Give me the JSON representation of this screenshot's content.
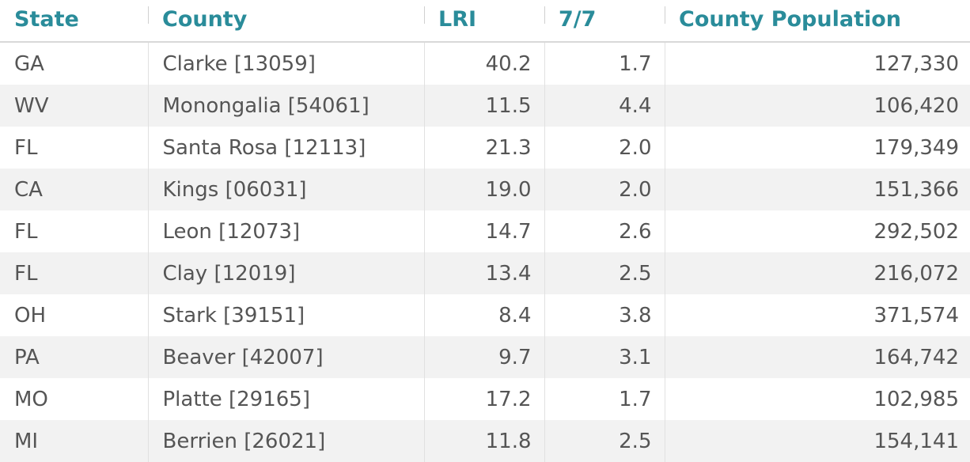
{
  "chart_data": {
    "type": "table",
    "columns": [
      "State",
      "County",
      "LRI",
      "7/7",
      "County Population"
    ],
    "rows": [
      {
        "state": "GA",
        "county": "Clarke [13059]",
        "lri": "40.2",
        "d77": "1.7",
        "pop": "127,330"
      },
      {
        "state": "WV",
        "county": "Monongalia [54061]",
        "lri": "11.5",
        "d77": "4.4",
        "pop": "106,420"
      },
      {
        "state": "FL",
        "county": "Santa Rosa [12113]",
        "lri": "21.3",
        "d77": "2.0",
        "pop": "179,349"
      },
      {
        "state": "CA",
        "county": "Kings [06031]",
        "lri": "19.0",
        "d77": "2.0",
        "pop": "151,366"
      },
      {
        "state": "FL",
        "county": "Leon [12073]",
        "lri": "14.7",
        "d77": "2.6",
        "pop": "292,502"
      },
      {
        "state": "FL",
        "county": "Clay [12019]",
        "lri": "13.4",
        "d77": "2.5",
        "pop": "216,072"
      },
      {
        "state": "OH",
        "county": "Stark [39151]",
        "lri": "8.4",
        "d77": "3.8",
        "pop": "371,574"
      },
      {
        "state": "PA",
        "county": "Beaver [42007]",
        "lri": "9.7",
        "d77": "3.1",
        "pop": "164,742"
      },
      {
        "state": "MO",
        "county": "Platte [29165]",
        "lri": "17.2",
        "d77": "1.7",
        "pop": "102,985"
      },
      {
        "state": "MI",
        "county": "Berrien [26021]",
        "lri": "11.8",
        "d77": "2.5",
        "pop": "154,141"
      }
    ]
  },
  "colors": {
    "header_text": "#2a8c9a",
    "body_text": "#555555",
    "stripe": "#f2f2f2"
  }
}
